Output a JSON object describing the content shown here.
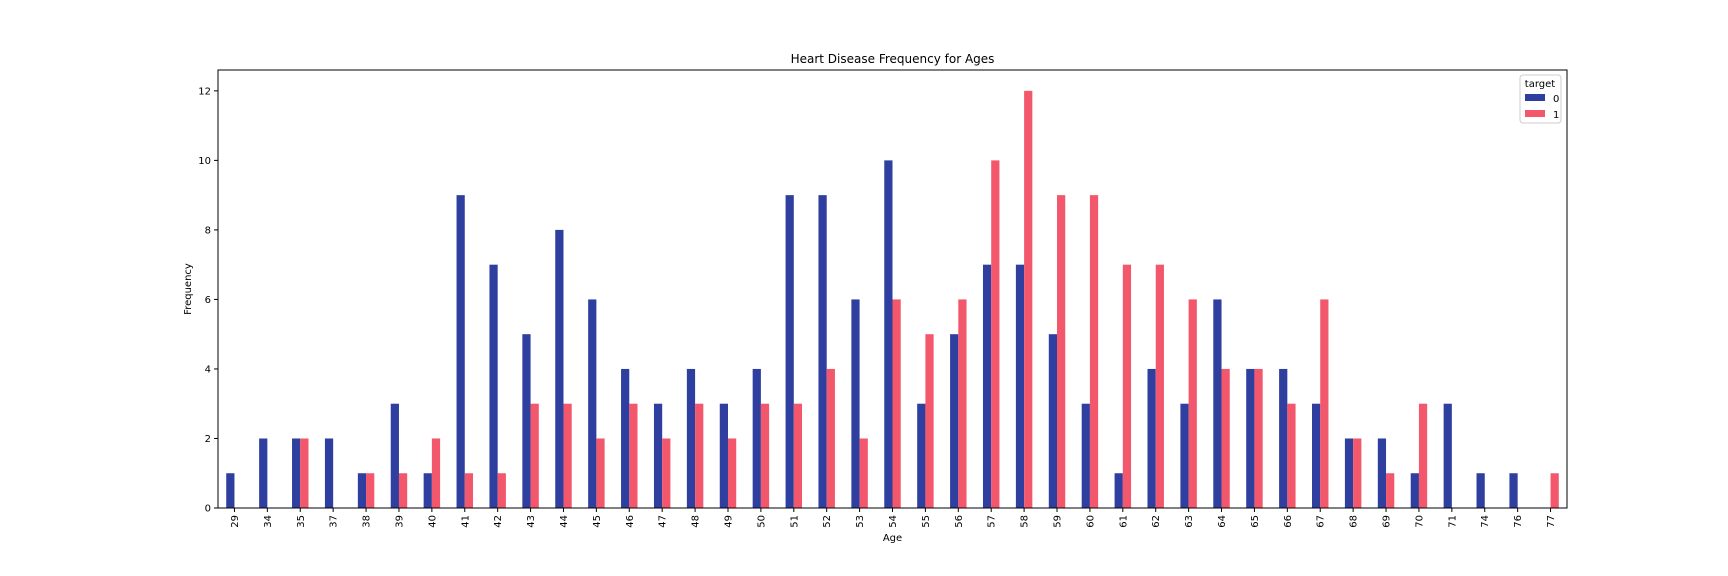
{
  "chart_data": {
    "type": "bar",
    "title": "Heart Disease Frequency for Ages",
    "xlabel": "Age",
    "ylabel": "Frequency",
    "ylim": [
      0,
      12.6
    ],
    "yticks": [
      0,
      2,
      4,
      6,
      8,
      10,
      12
    ],
    "categories": [
      "29",
      "34",
      "35",
      "37",
      "38",
      "39",
      "40",
      "41",
      "42",
      "43",
      "44",
      "45",
      "46",
      "47",
      "48",
      "49",
      "50",
      "51",
      "52",
      "53",
      "54",
      "55",
      "56",
      "57",
      "58",
      "59",
      "60",
      "61",
      "62",
      "63",
      "64",
      "65",
      "66",
      "67",
      "68",
      "69",
      "70",
      "71",
      "74",
      "76",
      "77"
    ],
    "series": [
      {
        "name": "0",
        "color": "#2f3f9f",
        "values": [
          1,
          2,
          2,
          2,
          1,
          3,
          1,
          9,
          7,
          5,
          8,
          6,
          4,
          3,
          4,
          3,
          4,
          9,
          9,
          6,
          10,
          3,
          5,
          7,
          7,
          5,
          3,
          1,
          4,
          3,
          6,
          4,
          4,
          3,
          2,
          2,
          1,
          3,
          1,
          1,
          0
        ]
      },
      {
        "name": "1",
        "color": "#f2576c",
        "values": [
          0,
          0,
          2,
          0,
          1,
          1,
          2,
          1,
          1,
          3,
          3,
          2,
          3,
          2,
          3,
          2,
          3,
          3,
          4,
          2,
          6,
          5,
          6,
          10,
          12,
          9,
          9,
          7,
          7,
          6,
          4,
          4,
          3,
          6,
          2,
          1,
          3,
          0,
          0,
          0,
          1
        ]
      }
    ],
    "legend": {
      "title": "target",
      "placement": "top-right"
    },
    "grid": false
  }
}
